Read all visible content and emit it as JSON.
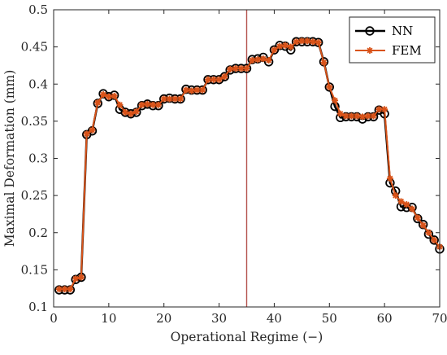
{
  "chart_data": {
    "type": "line",
    "xlabel": "Operational Regime (−)",
    "ylabel": "Maximal Deformation (mm)",
    "xlim": [
      0,
      70
    ],
    "ylim": [
      0.1,
      0.5
    ],
    "xticks": [
      0,
      10,
      20,
      30,
      40,
      50,
      60,
      70
    ],
    "yticks": [
      0.1,
      0.15,
      0.2,
      0.25,
      0.3,
      0.35,
      0.4,
      0.45,
      0.5
    ],
    "ytick_labels": [
      "0.1",
      "0.15",
      "0.2",
      "0.25",
      "0.3",
      "0.35",
      "0.4",
      "0.45",
      "0.5"
    ],
    "grid": false,
    "legend_position": "top-right",
    "vertical_line": {
      "x": 35,
      "color": "#b5554f"
    },
    "x": [
      1,
      2,
      3,
      4,
      5,
      6,
      7,
      8,
      9,
      10,
      11,
      12,
      13,
      14,
      15,
      16,
      17,
      18,
      19,
      20,
      21,
      22,
      23,
      24,
      25,
      26,
      27,
      28,
      29,
      30,
      31,
      32,
      33,
      34,
      35,
      36,
      37,
      38,
      39,
      40,
      41,
      42,
      43,
      44,
      45,
      46,
      47,
      48,
      49,
      50,
      51,
      52,
      53,
      54,
      55,
      56,
      57,
      58,
      59,
      60,
      61,
      62,
      63,
      64,
      65,
      66,
      67,
      68,
      69,
      70
    ],
    "series": [
      {
        "name": "NN",
        "color": "#000000",
        "marker": "circle",
        "values": [
          0.123,
          0.123,
          0.123,
          0.137,
          0.14,
          0.332,
          0.337,
          0.374,
          0.387,
          0.383,
          0.385,
          0.366,
          0.362,
          0.36,
          0.362,
          0.371,
          0.373,
          0.371,
          0.371,
          0.38,
          0.381,
          0.38,
          0.38,
          0.393,
          0.392,
          0.392,
          0.392,
          0.406,
          0.406,
          0.406,
          0.41,
          0.419,
          0.421,
          0.421,
          0.421,
          0.433,
          0.434,
          0.436,
          0.43,
          0.446,
          0.452,
          0.451,
          0.446,
          0.457,
          0.457,
          0.457,
          0.457,
          0.456,
          0.43,
          0.396,
          0.37,
          0.355,
          0.356,
          0.356,
          0.356,
          0.353,
          0.356,
          0.356,
          0.365,
          0.36,
          0.267,
          0.256,
          0.235,
          0.234,
          0.234,
          0.219,
          0.211,
          0.198,
          0.19,
          0.178
        ]
      },
      {
        "name": "FEM",
        "color": "#d95319",
        "marker": "asterisk",
        "values": [
          0.124,
          0.124,
          0.124,
          0.138,
          0.14,
          0.333,
          0.338,
          0.375,
          0.386,
          0.383,
          0.384,
          0.372,
          0.362,
          0.36,
          0.363,
          0.372,
          0.373,
          0.372,
          0.372,
          0.38,
          0.38,
          0.38,
          0.38,
          0.392,
          0.391,
          0.392,
          0.392,
          0.406,
          0.406,
          0.406,
          0.41,
          0.42,
          0.421,
          0.421,
          0.421,
          0.432,
          0.433,
          0.434,
          0.432,
          0.446,
          0.451,
          0.452,
          0.45,
          0.457,
          0.458,
          0.458,
          0.457,
          0.456,
          0.429,
          0.396,
          0.378,
          0.36,
          0.357,
          0.357,
          0.357,
          0.356,
          0.357,
          0.357,
          0.366,
          0.366,
          0.273,
          0.25,
          0.242,
          0.238,
          0.232,
          0.22,
          0.21,
          0.2,
          0.19,
          0.181
        ]
      }
    ]
  }
}
